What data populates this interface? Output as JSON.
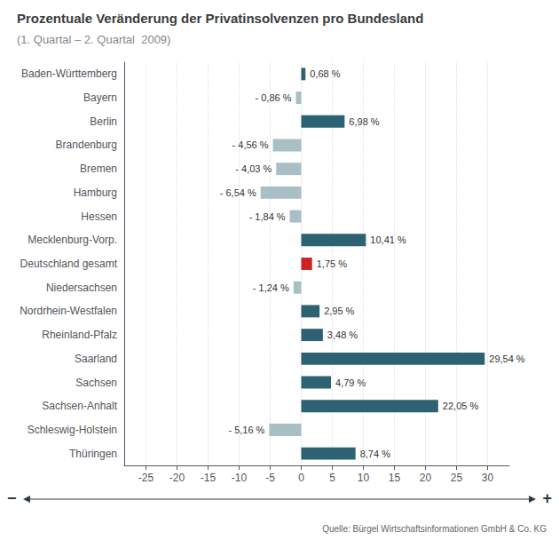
{
  "chart_data": {
    "type": "bar",
    "orientation": "horizontal",
    "title": "Prozentuale Veränderung der Privatinsolvenzen pro Bundesland",
    "subtitle": "(1. Quartal – 2. Quartal  2009)",
    "categories": [
      "Baden-Württemberg",
      "Bayern",
      "Berlin",
      "Brandenburg",
      "Bremen",
      "Hamburg",
      "Hessen",
      "Mecklenburg-Vorp.",
      "Deutschland gesamt",
      "Niedersachsen",
      "Nordrhein-Westfalen",
      "Rheinland-Pfalz",
      "Saarland",
      "Sachsen",
      "Sachsen-Anhalt",
      "Schleswig-Holstein",
      "Thüringen"
    ],
    "values": [
      0.68,
      -0.86,
      6.98,
      -4.56,
      -4.03,
      -6.54,
      -1.84,
      10.41,
      1.75,
      -1.24,
      2.95,
      3.48,
      29.54,
      4.79,
      22.05,
      -5.16,
      8.74
    ],
    "value_labels": [
      "0,68 %",
      "- 0,86 %",
      "6,98 %",
      "- 4,56 %",
      "- 4,03 %",
      "- 6,54 %",
      "- 1,84 %",
      "10,41 %",
      "1,75 %",
      "- 1,24 %",
      "2,95 %",
      "3,48 %",
      "29,54 %",
      "4,79 %",
      "22,05 %",
      "- 5,16 %",
      "8,74 %"
    ],
    "colors": [
      "#2d6272",
      "#a8bfc6",
      "#2d6272",
      "#a8bfc6",
      "#a8bfc6",
      "#a8bfc6",
      "#a8bfc6",
      "#2d6272",
      "#cc2222",
      "#a8bfc6",
      "#2d6272",
      "#2d6272",
      "#2d6272",
      "#2d6272",
      "#2d6272",
      "#a8bfc6",
      "#2d6272"
    ],
    "data_labels": true,
    "xlim": [
      -28.5,
      33.5
    ],
    "xticks": [
      -25,
      -20,
      -15,
      -10,
      -5,
      0,
      5,
      10,
      15,
      20,
      25,
      30
    ],
    "grid": true,
    "annotations": [
      "−",
      "+",
      "Quelle: Bürgel Wirtschaftsinformationen GmbH & Co. KG"
    ]
  }
}
